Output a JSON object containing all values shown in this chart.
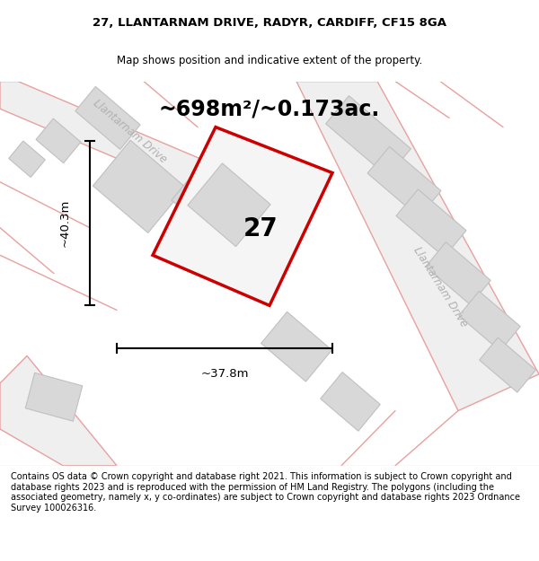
{
  "title_line1": "27, LLANTARNAM DRIVE, RADYR, CARDIFF, CF15 8GA",
  "title_line2": "Map shows position and indicative extent of the property.",
  "area_text": "~698m²/~0.173ac.",
  "number_label": "27",
  "width_label": "~37.8m",
  "height_label": "~40.3m",
  "road_label_top": "Llantarnam Drive",
  "road_label_right": "Llantarnam Drive",
  "footer_text": "Contains OS data © Crown copyright and database right 2021. This information is subject to Crown copyright and database rights 2023 and is reproduced with the permission of HM Land Registry. The polygons (including the associated geometry, namely x, y co-ordinates) are subject to Crown copyright and database rights 2023 Ordnance Survey 100026316.",
  "bg_color": "#ffffff",
  "map_bg_color": "#f7f7f7",
  "road_fill_color": "#efefef",
  "building_fill_color": "#d8d8d8",
  "road_line_color": "#e8a0a0",
  "property_outline_color": "#cc0000",
  "title_fontsize": 9.5,
  "subtitle_fontsize": 8.5,
  "area_fontsize": 17,
  "number_fontsize": 20,
  "dim_fontsize": 9.5,
  "footer_fontsize": 7.0,
  "road_label_fontsize": 8.5
}
